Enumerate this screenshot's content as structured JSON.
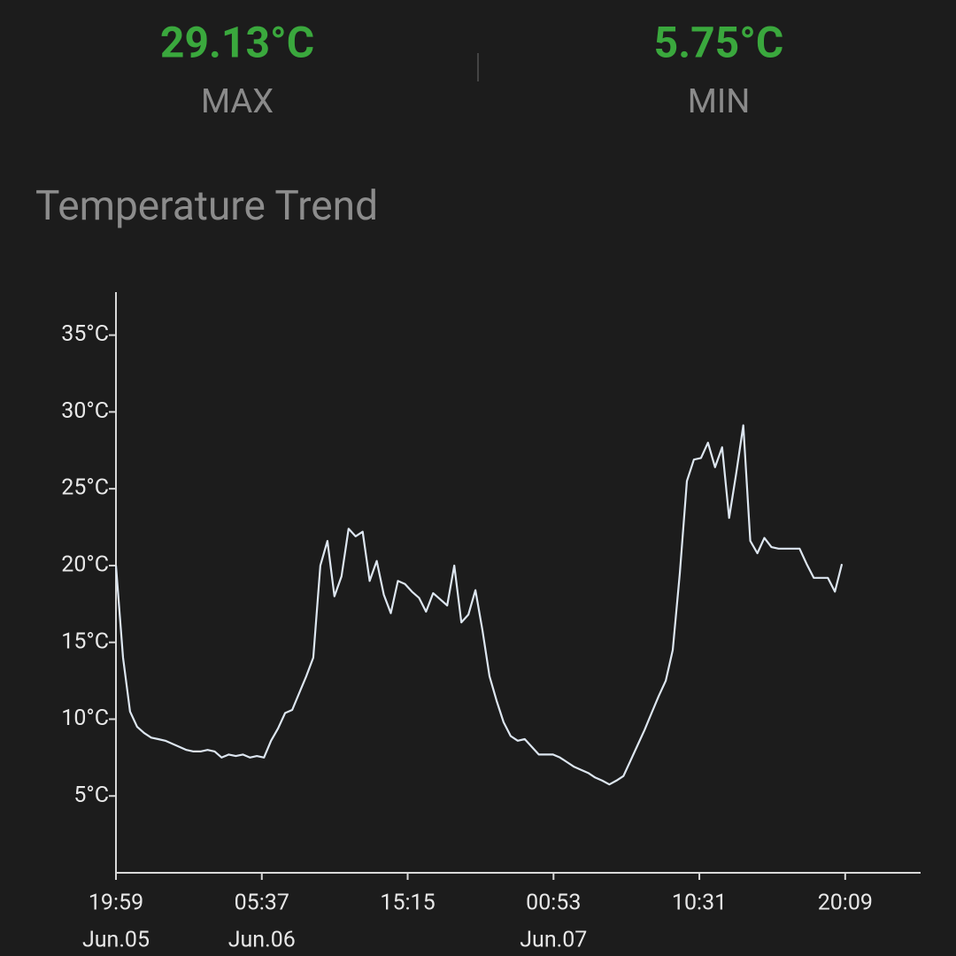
{
  "stats": [
    {
      "value": "29.13°C",
      "label": "MAX"
    },
    {
      "value": "5.75°C",
      "label": "MIN"
    }
  ],
  "chart_data": {
    "type": "line",
    "title": "Temperature Trend",
    "color": "#dde6f0",
    "values": [
      20,
      14,
      10.5,
      9.5,
      9.1,
      8.8,
      8.7,
      8.6,
      8.4,
      8.2,
      8.0,
      7.9,
      7.9,
      8.0,
      7.9,
      7.5,
      7.7,
      7.6,
      7.7,
      7.5,
      7.6,
      7.5,
      8.6,
      9.4,
      10.4,
      10.6,
      11.7,
      12.8,
      14,
      20,
      21.6,
      18,
      19.3,
      22.4,
      21.9,
      22.2,
      19,
      20.3,
      18.1,
      16.9,
      19,
      18.8,
      18.3,
      17.9,
      17,
      18.2,
      17.8,
      17.4,
      20,
      16.3,
      16.8,
      18.4,
      15.8,
      12.8,
      11.2,
      9.8,
      8.9,
      8.6,
      8.7,
      8.2,
      7.7,
      7.7,
      7.7,
      7.5,
      7.2,
      6.9,
      6.7,
      6.5,
      6.2,
      6.0,
      5.75,
      6.0,
      6.3,
      7.3,
      8.3,
      9.3,
      10.4,
      11.5,
      12.5,
      14.5,
      19.5,
      25.5,
      26.9,
      27,
      28,
      26.4,
      27.7,
      23.1,
      26,
      29.13,
      21.6,
      20.8,
      21.8,
      21.2,
      21.1,
      21.1,
      21.1,
      21.1,
      20.1,
      19.2,
      19.2,
      19.2,
      18.3,
      20.1
    ],
    "xlim": [
      0,
      114.2
    ],
    "xticks": [
      {
        "value": 0,
        "label": "19:59"
      },
      {
        "value": 20.7,
        "label": "05:37"
      },
      {
        "value": 41.4,
        "label": "15:15"
      },
      {
        "value": 62.1,
        "label": "00:53"
      },
      {
        "value": 82.8,
        "label": "10:31"
      },
      {
        "value": 103.5,
        "label": "20:09"
      }
    ],
    "xtick_dates": [
      "Jun.05",
      "Jun.06",
      null,
      "Jun.07",
      null,
      null
    ],
    "ylim": [
      0,
      37.8
    ],
    "yticks": [
      {
        "value": 5,
        "label": "5°C"
      },
      {
        "value": 10,
        "label": "10°C"
      },
      {
        "value": 15,
        "label": "15°C"
      },
      {
        "value": 20,
        "label": "20°C"
      },
      {
        "value": 25,
        "label": "25°C"
      },
      {
        "value": 30,
        "label": "30°C"
      },
      {
        "value": 35,
        "label": "35°C"
      }
    ]
  }
}
